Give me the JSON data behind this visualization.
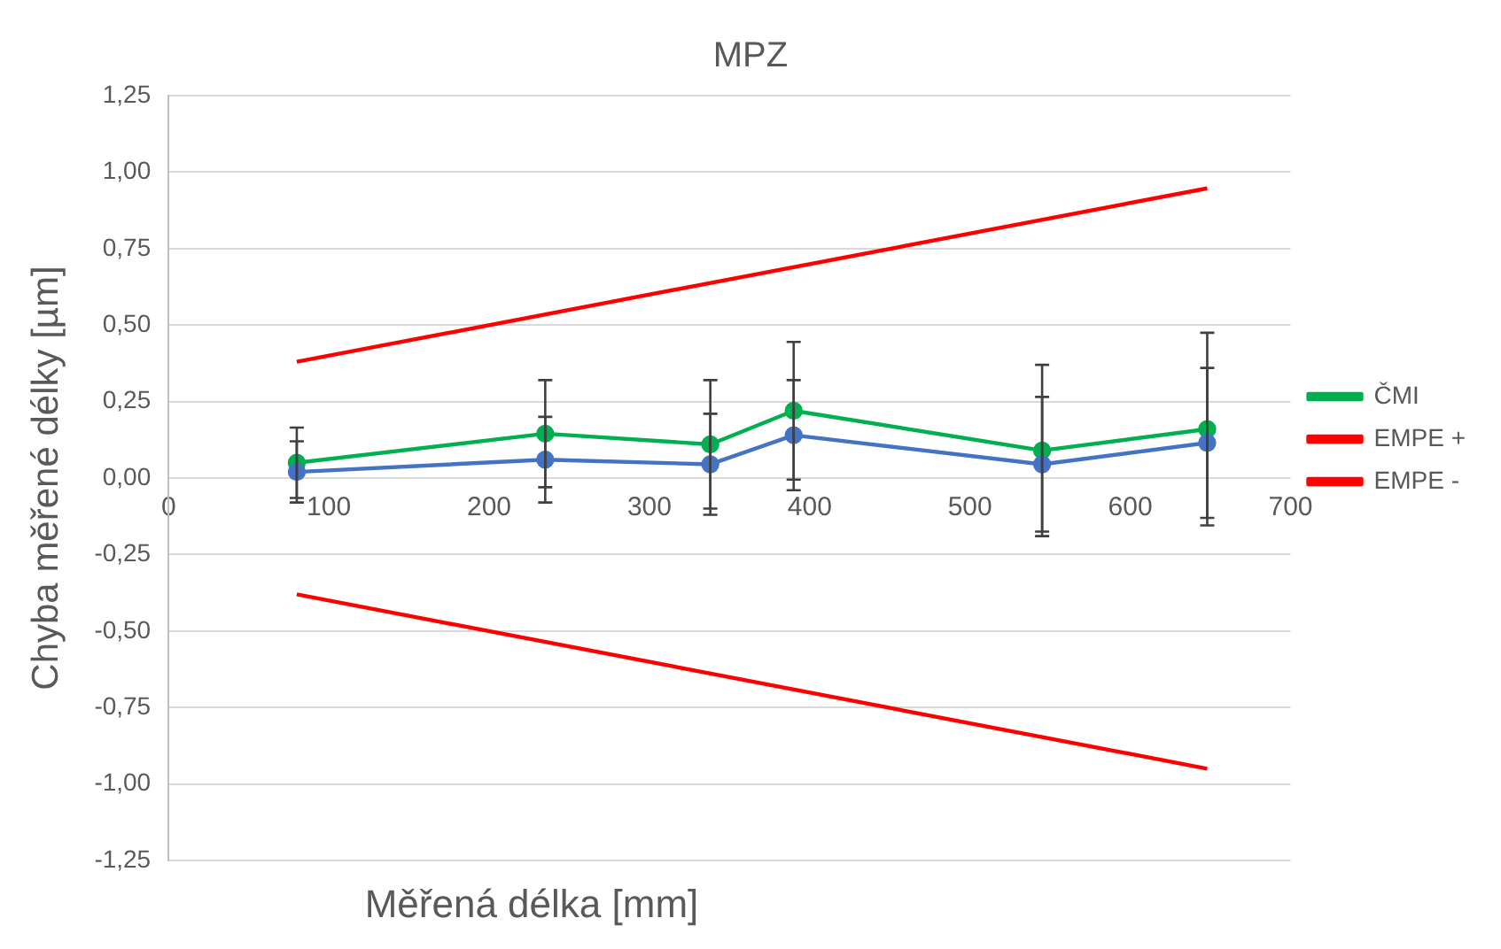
{
  "chart_data": {
    "type": "line",
    "title": "MPZ",
    "xlabel": "Měřená délka [mm]",
    "ylabel": "Chyba měřené délky [µm]",
    "xlim": [
      0,
      700
    ],
    "xticks": [
      0,
      100,
      200,
      300,
      400,
      500,
      600,
      700
    ],
    "ylim": [
      -1.25,
      1.25
    ],
    "yticks": [
      {
        "value": -1.25,
        "label": "-1,25"
      },
      {
        "value": -1,
        "label": "-1,00"
      },
      {
        "value": -0.75,
        "label": "-0,75"
      },
      {
        "value": -0.5,
        "label": "-0,50"
      },
      {
        "value": -0.25,
        "label": "-0,25"
      },
      {
        "value": 0,
        "label": "0,00"
      },
      {
        "value": 0.25,
        "label": "0,25"
      },
      {
        "value": 0.5,
        "label": "0,50"
      },
      {
        "value": 0.75,
        "label": "0,75"
      },
      {
        "value": 1,
        "label": "1,00"
      },
      {
        "value": 1.25,
        "label": "1,25"
      }
    ],
    "grid": "y",
    "legend": "right",
    "series": [
      {
        "color": "#4472c4",
        "marker": "circle",
        "x": [
          80,
          235,
          338,
          390,
          545,
          648
        ],
        "values": [
          0.02,
          0.06,
          0.045,
          0.14,
          0.045,
          0.115
        ],
        "errors": [
          0.1,
          0.14,
          0.165,
          0.18,
          0.22,
          0.245
        ]
      },
      {
        "name": "ČMI",
        "color": "#00b050",
        "marker": "circle",
        "x": [
          80,
          235,
          338,
          390,
          545,
          648
        ],
        "values": [
          0.05,
          0.145,
          0.11,
          0.22,
          0.09,
          0.16
        ],
        "errors": [
          0.115,
          0.175,
          0.21,
          0.225,
          0.28,
          0.315
        ]
      },
      {
        "name": "EMPE +",
        "color": "#ff0000",
        "marker": "none",
        "x": [
          80,
          648
        ],
        "values": [
          0.38,
          0.947
        ]
      },
      {
        "name": "EMPE -",
        "color": "#ff0000",
        "marker": "none",
        "x": [
          80,
          648
        ],
        "values": [
          -0.38,
          -0.95
        ]
      }
    ]
  }
}
